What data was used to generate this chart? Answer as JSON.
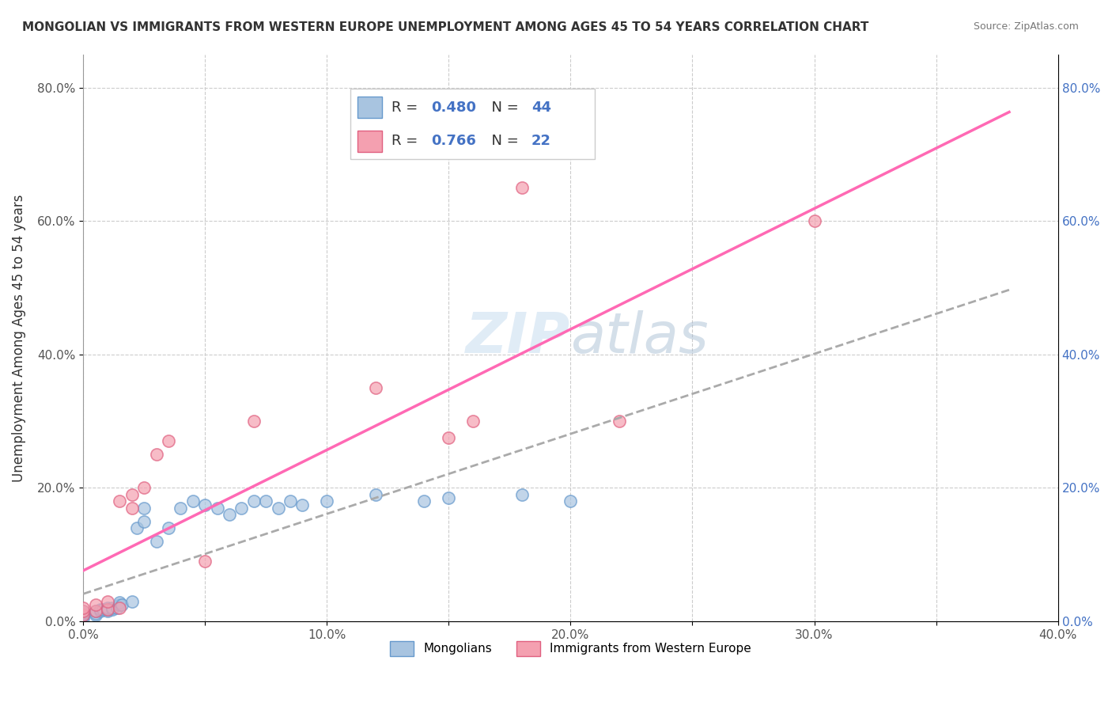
{
  "title": "MONGOLIAN VS IMMIGRANTS FROM WESTERN EUROPE UNEMPLOYMENT AMONG AGES 45 TO 54 YEARS CORRELATION CHART",
  "source": "Source: ZipAtlas.com",
  "xlabel": "",
  "ylabel": "Unemployment Among Ages 45 to 54 years",
  "xlim": [
    0.0,
    0.4
  ],
  "ylim": [
    0.0,
    0.85
  ],
  "xtick_labels": [
    "0.0%",
    "",
    "10.0%",
    "",
    "20.0%",
    "",
    "30.0%",
    "",
    "40.0%"
  ],
  "ytick_labels": [
    "0.0%",
    "20.0%",
    "40.0%",
    "60.0%",
    "80.0%"
  ],
  "ytick_positions": [
    0.0,
    0.2,
    0.4,
    0.6,
    0.8
  ],
  "xtick_positions": [
    0.0,
    0.05,
    0.1,
    0.15,
    0.2,
    0.25,
    0.3,
    0.35,
    0.4
  ],
  "r_mongolian": 0.48,
  "n_mongolian": 44,
  "r_western": 0.766,
  "n_western": 22,
  "color_mongolian": "#a8c4e0",
  "color_western": "#f4a0b0",
  "line_color_mongolian": "#6699cc",
  "line_color_western": "#ff69b4",
  "watermark_zip": "ZIP",
  "watermark_atlas": "atlas",
  "legend_label_1": "Mongolians",
  "legend_label_2": "Immigrants from Western Europe",
  "mongolian_x": [
    0.0,
    0.0,
    0.0,
    0.0,
    0.0,
    0.0,
    0.005,
    0.005,
    0.005,
    0.007,
    0.007,
    0.008,
    0.01,
    0.01,
    0.01,
    0.012,
    0.012,
    0.014,
    0.015,
    0.015,
    0.016,
    0.02,
    0.022,
    0.025,
    0.025,
    0.03,
    0.035,
    0.04,
    0.045,
    0.05,
    0.055,
    0.06,
    0.065,
    0.07,
    0.075,
    0.08,
    0.085,
    0.09,
    0.1,
    0.12,
    0.14,
    0.15,
    0.18,
    0.2
  ],
  "mongolian_y": [
    0.005,
    0.008,
    0.01,
    0.012,
    0.013,
    0.015,
    0.01,
    0.012,
    0.015,
    0.015,
    0.018,
    0.018,
    0.016,
    0.018,
    0.02,
    0.018,
    0.02,
    0.02,
    0.025,
    0.028,
    0.025,
    0.03,
    0.14,
    0.15,
    0.17,
    0.12,
    0.14,
    0.17,
    0.18,
    0.175,
    0.17,
    0.16,
    0.17,
    0.18,
    0.18,
    0.17,
    0.18,
    0.175,
    0.18,
    0.19,
    0.18,
    0.185,
    0.19,
    0.18
  ],
  "western_x": [
    0.0,
    0.0,
    0.0,
    0.005,
    0.005,
    0.01,
    0.01,
    0.015,
    0.015,
    0.02,
    0.02,
    0.025,
    0.03,
    0.035,
    0.05,
    0.07,
    0.12,
    0.15,
    0.16,
    0.18,
    0.22,
    0.3
  ],
  "western_y": [
    0.01,
    0.015,
    0.02,
    0.015,
    0.025,
    0.018,
    0.03,
    0.02,
    0.18,
    0.17,
    0.19,
    0.2,
    0.25,
    0.27,
    0.09,
    0.3,
    0.35,
    0.275,
    0.3,
    0.65,
    0.3,
    0.6
  ]
}
